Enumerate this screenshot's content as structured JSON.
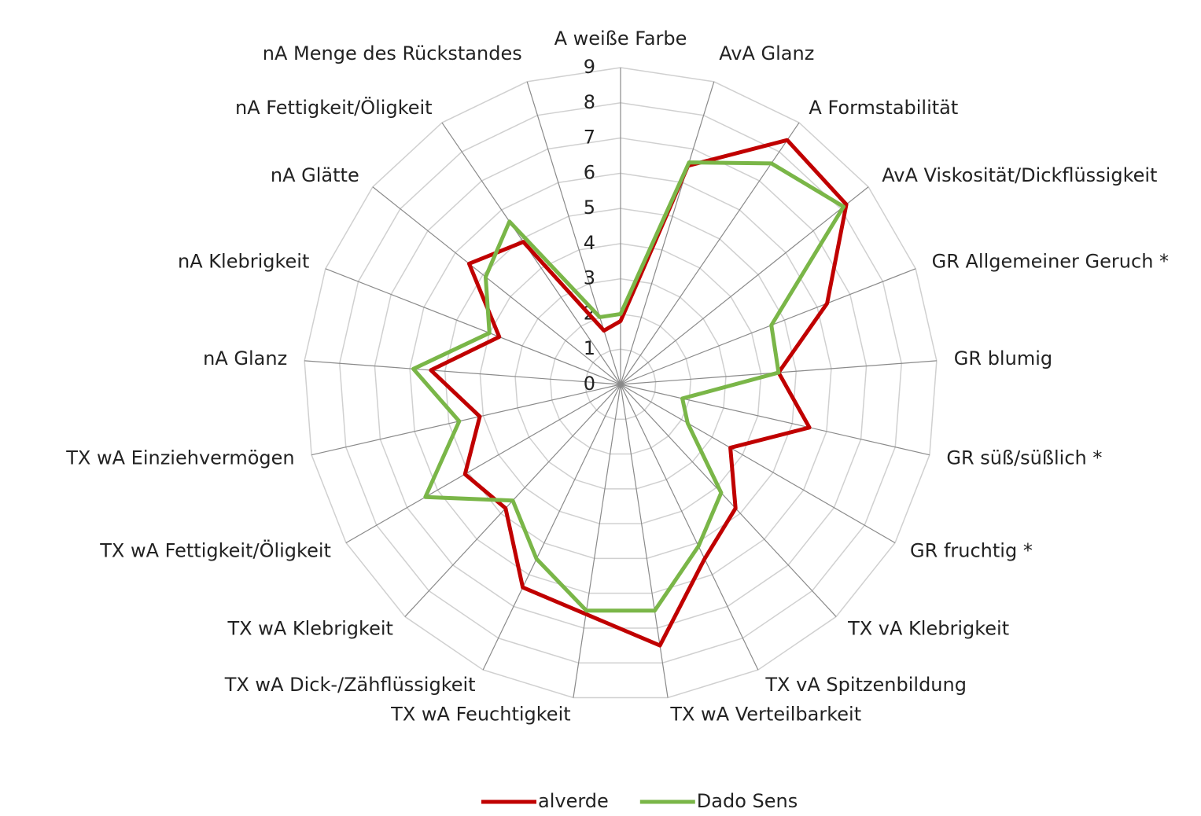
{
  "chart_data": {
    "type": "radar",
    "categories": [
      "A weiße Farbe",
      "AvA Glanz",
      "A Formstabilität",
      "AvA Viskosität/Dickflüssigkeit",
      "GR Allgemeiner Geruch *",
      "GR blumig",
      "GR süß/süßlich *",
      "GR fruchtig *",
      "TX vA Klebrigkeit",
      "TX vA Spitzenbildung",
      "TX wA  Verteilbarkeit",
      "TX wA Feuchtigkeit",
      "TX wA Dick-/Zähflüssigkeit",
      "TX wA Klebrigkeit",
      "TX wA Fettigkeit/Öligkeit",
      "TX wA Einziehvermögen",
      "nA Glanz",
      "nA Klebrigkeit",
      "nA Glätte",
      "nA Fettigkeit/Öligkeit",
      "nA Menge des Rückstandes"
    ],
    "series": [
      {
        "name": "alverde",
        "color": "#c00000",
        "values": [
          1.8,
          6.5,
          8.4,
          8.2,
          6.3,
          4.5,
          5.5,
          3.6,
          4.8,
          5.5,
          7.5,
          6.6,
          6.4,
          4.8,
          5.1,
          4.1,
          5.4,
          3.7,
          5.5,
          4.9,
          1.6
        ]
      },
      {
        "name": "Dado Sens",
        "color": "#7ab648",
        "values": [
          2.0,
          6.6,
          7.6,
          8.1,
          4.6,
          4.5,
          1.8,
          2.2,
          4.2,
          5.1,
          6.5,
          6.5,
          5.5,
          4.5,
          6.4,
          4.7,
          5.9,
          4.0,
          4.9,
          5.6,
          2.0
        ]
      }
    ],
    "ylim": [
      0,
      9
    ],
    "yticks": [
      0,
      1,
      2,
      3,
      4,
      5,
      6,
      7,
      8,
      9
    ],
    "grid": true,
    "legend": "bottom"
  }
}
